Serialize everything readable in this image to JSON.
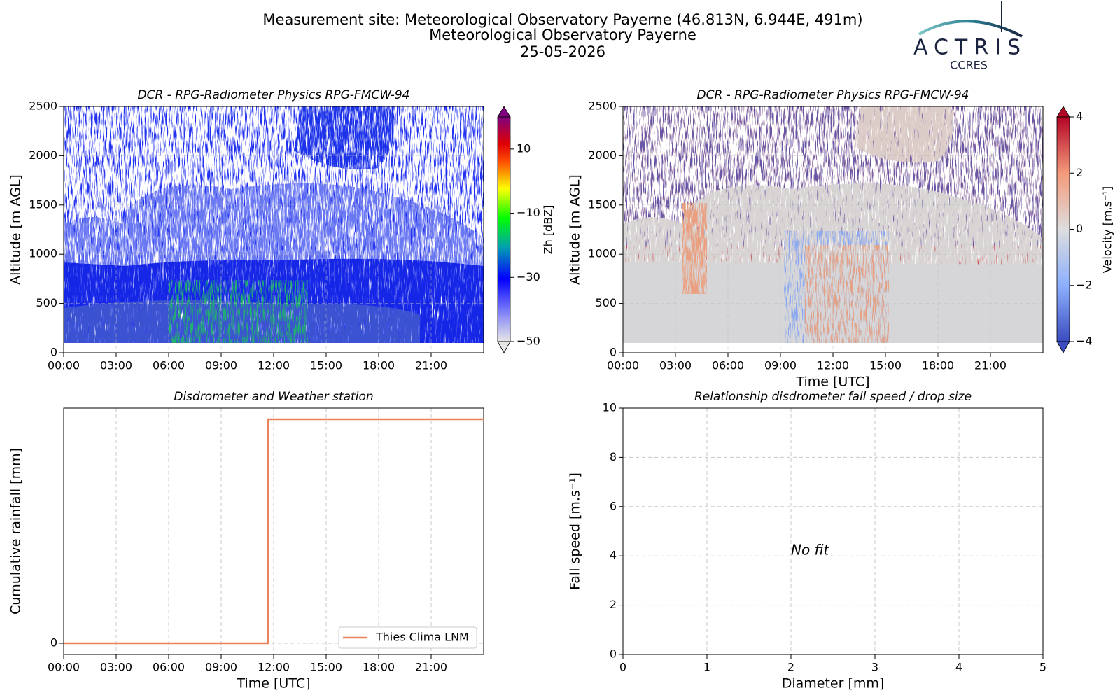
{
  "header": {
    "title": "Measurement site: Meteorological Observatory Payerne (46.813N, 6.944E, 491m)",
    "subtitle": "Meteorological Observatory Payerne",
    "date": "25-05-2026",
    "logo": {
      "name": "ACTRIS",
      "subname": "CCRES"
    }
  },
  "chart_data": [
    {
      "type": "heatmap",
      "title": "DCR - RPG-Radiometer Physics RPG-FMCW-94",
      "ylabel": "Altitude [m AGL]",
      "xlim": [
        0,
        24
      ],
      "xticks": [
        {
          "value": 0,
          "label": "00:00"
        },
        {
          "value": 3,
          "label": "03:00"
        },
        {
          "value": 6,
          "label": "06:00"
        },
        {
          "value": 9,
          "label": "09:00"
        },
        {
          "value": 12,
          "label": "12:00"
        },
        {
          "value": 15,
          "label": "15:00"
        },
        {
          "value": 18,
          "label": "18:00"
        },
        {
          "value": 21,
          "label": "21:00"
        }
      ],
      "ylim": [
        0,
        2500
      ],
      "yticks": [
        0,
        500,
        1000,
        1500,
        2000,
        2500
      ],
      "grid": true,
      "colorbar": {
        "label": "Zh [dBZ]",
        "lim": [
          -50,
          20
        ],
        "ticks": [
          {
            "value": -50,
            "label": "−50"
          },
          {
            "value": -30,
            "label": "−30"
          },
          {
            "value": -10,
            "label": "−10"
          },
          10
        ],
        "colormap": "zh"
      }
    },
    {
      "type": "heatmap",
      "title": "DCR - RPG-Radiometer Physics RPG-FMCW-94",
      "ylabel": "Altitude [m AGL]",
      "xlabel": "Time [UTC]",
      "xlim": [
        0,
        24
      ],
      "xticks": [
        {
          "value": 0,
          "label": "00:00"
        },
        {
          "value": 3,
          "label": "03:00"
        },
        {
          "value": 6,
          "label": "06:00"
        },
        {
          "value": 9,
          "label": "09:00"
        },
        {
          "value": 12,
          "label": "12:00"
        },
        {
          "value": 15,
          "label": "15:00"
        },
        {
          "value": 18,
          "label": "18:00"
        },
        {
          "value": 21,
          "label": "21:00"
        }
      ],
      "ylim": [
        0,
        2500
      ],
      "yticks": [
        0,
        500,
        1000,
        1500,
        2000,
        2500
      ],
      "grid": true,
      "colorbar": {
        "label": "Velocity [m.s⁻¹]",
        "lim": [
          -4,
          4
        ],
        "ticks": [
          {
            "value": -4,
            "label": "−4"
          },
          {
            "value": -2,
            "label": "−2"
          },
          0,
          2,
          4
        ],
        "colormap": "vel"
      }
    },
    {
      "type": "line",
      "title": "Disdrometer and Weather station",
      "ylabel": "Cumulative rainfall [mm]",
      "xlabel": "Time [UTC]",
      "xlim": [
        0,
        24
      ],
      "xticks": [
        {
          "value": 0,
          "label": "00:00"
        },
        {
          "value": 3,
          "label": "03:00"
        },
        {
          "value": 6,
          "label": "06:00"
        },
        {
          "value": 9,
          "label": "09:00"
        },
        {
          "value": 12,
          "label": "12:00"
        },
        {
          "value": 15,
          "label": "15:00"
        },
        {
          "value": 18,
          "label": "18:00"
        },
        {
          "value": 21,
          "label": "21:00"
        }
      ],
      "ylim": [
        -0.05,
        1.05
      ],
      "yticks": [
        0
      ],
      "grid": true,
      "legend": "lower right",
      "series": [
        {
          "name": "Thies Clima LNM",
          "color": "#e9835e",
          "x": [
            0,
            11.67,
            11.67,
            24
          ],
          "values": [
            0,
            0,
            1,
            1
          ]
        }
      ]
    },
    {
      "type": "scatter",
      "title": "Relationship disdrometer fall speed / drop size",
      "ylabel": "Fall speed [m.s⁻¹]",
      "xlabel": "Diameter [mm]",
      "xlim": [
        0,
        5
      ],
      "xticks": [
        0,
        1,
        2,
        3,
        4,
        5
      ],
      "ylim": [
        0,
        10
      ],
      "yticks": [
        0,
        2,
        4,
        6,
        8,
        10
      ],
      "grid": true,
      "annotation": "No fit",
      "series": []
    }
  ]
}
